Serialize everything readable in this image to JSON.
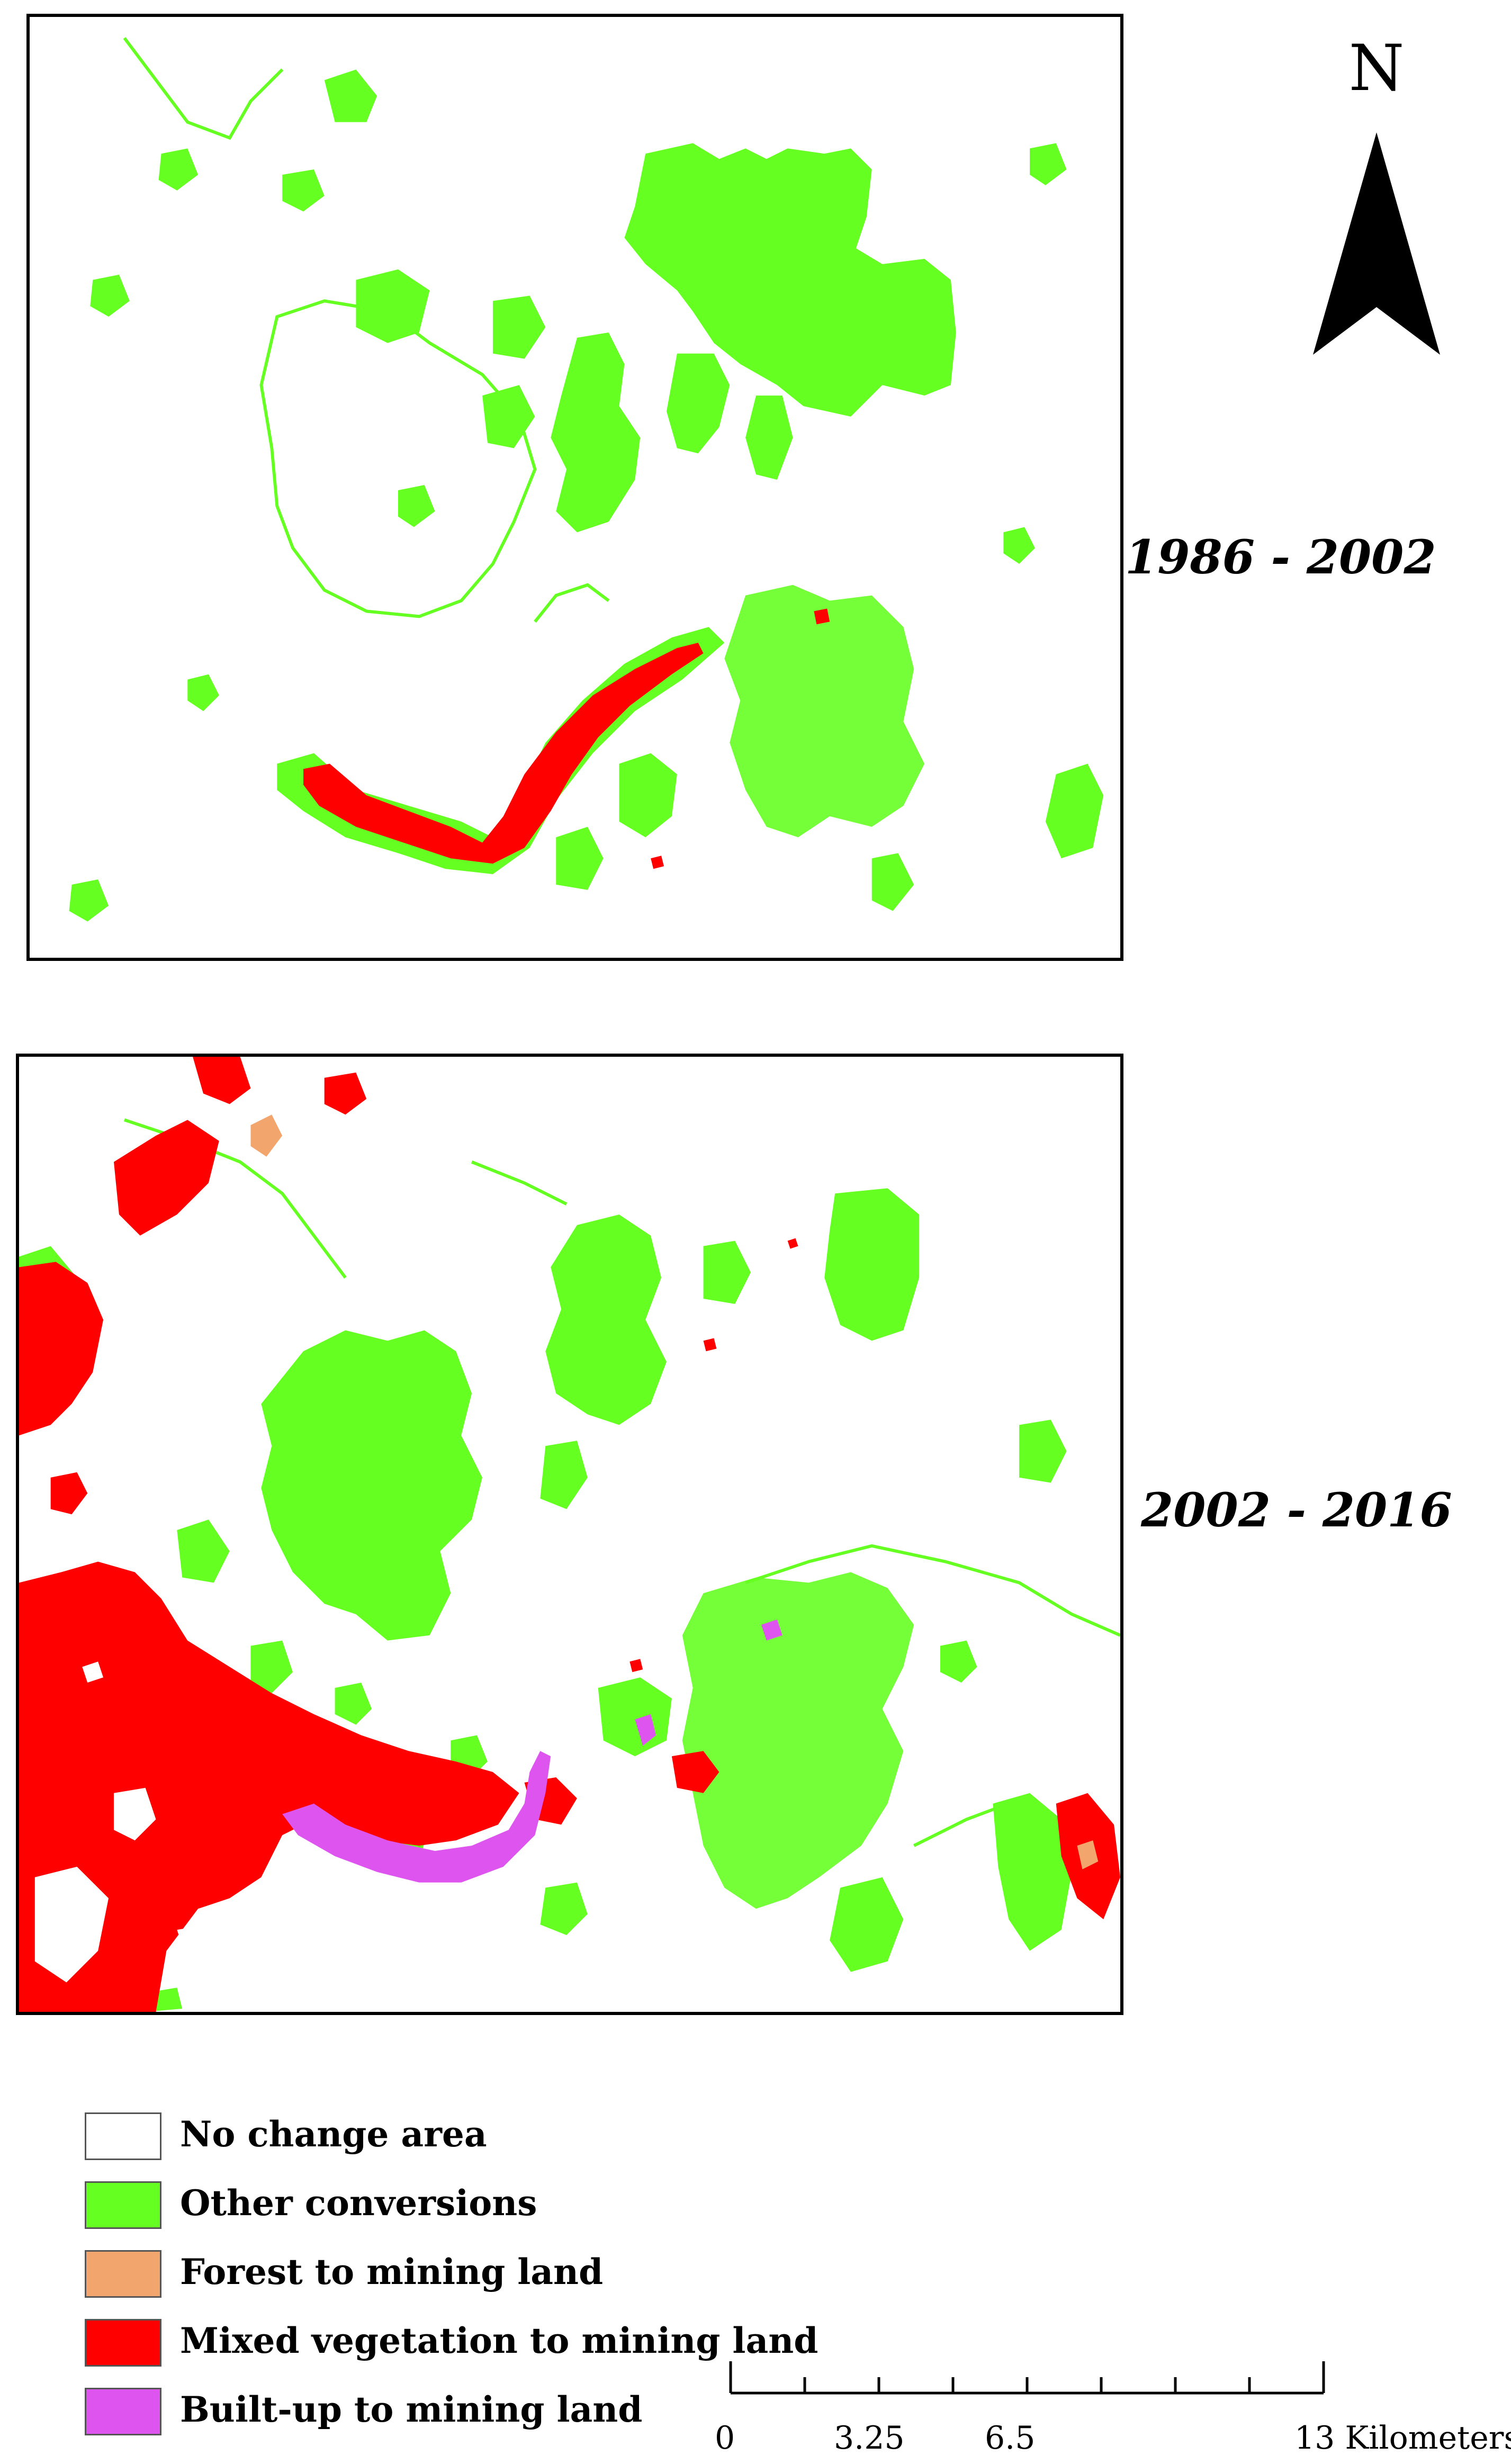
{
  "maps": [
    {
      "period_label": "1986 - 2002"
    },
    {
      "period_label": "2002 - 2016"
    }
  ],
  "north_arrow": {
    "letter": "N"
  },
  "legend": {
    "items": [
      {
        "label": "No change area",
        "color": "#ffffff"
      },
      {
        "label": "Other conversions",
        "color": "#66ff22"
      },
      {
        "label": "Forest to mining land",
        "color": "#f2a66e"
      },
      {
        "label": "Mixed vegetation to mining land",
        "color": "#ff0000"
      },
      {
        "label": "Built-up to mining land",
        "color": "#dd55ee"
      }
    ]
  },
  "scale_bar": {
    "labels": [
      "0",
      "3.25",
      "6.5",
      "13 Kilometers"
    ],
    "values": [
      0,
      3.25,
      6.5,
      13
    ],
    "max": 13,
    "segments": 8
  },
  "colors": {
    "no_change": "#ffffff",
    "other_conversions": "#66ff22",
    "forest_to_mining": "#f2a66e",
    "mixed_veg_to_mining": "#ff0000",
    "built_up_to_mining": "#dd55ee",
    "frame": "#000000"
  }
}
